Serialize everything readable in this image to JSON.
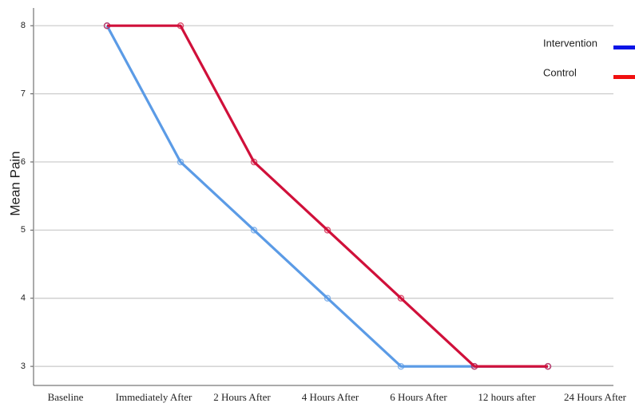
{
  "chart_data": {
    "type": "line",
    "y_label": "Mean Pain",
    "categories": [
      "Baseline",
      "Immediately After",
      "2 Hours After",
      "4 Hours After",
      "6 Hours After",
      "12 hours after",
      "24 Hours After"
    ],
    "series": [
      {
        "name": "Intervention",
        "color": "#5b9be6",
        "legend_color": "#0a14e6",
        "values": [
          8,
          6,
          5,
          4,
          3,
          3,
          3
        ]
      },
      {
        "name": "Control",
        "color": "#d0103a",
        "legend_color": "#f01010",
        "values": [
          8,
          8,
          6,
          5,
          4,
          3,
          3
        ]
      }
    ],
    "ylim": [
      2.72,
      8.26
    ],
    "yticks": [
      3,
      4,
      5,
      6,
      7,
      8
    ],
    "grid": true
  }
}
